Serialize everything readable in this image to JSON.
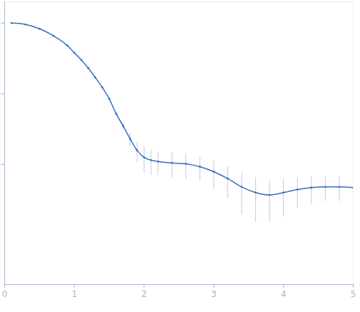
{
  "chart_data": {
    "type": "line",
    "marker": "circle",
    "color": "#3a6cc0",
    "log": "y",
    "grid": false,
    "tick_labels": "x",
    "x": [
      0.1,
      0.3,
      0.5,
      0.7,
      0.9,
      1.0,
      1.1,
      1.2,
      1.3,
      1.4,
      1.5,
      1.6,
      1.7,
      1.8,
      1.9,
      2.0,
      2.1,
      2.2,
      2.4,
      2.6,
      2.8,
      3.0,
      3.2,
      3.4,
      3.6,
      3.8,
      4.0,
      4.2,
      4.4,
      4.6,
      4.8,
      5.0
    ],
    "values": [
      1.0,
      0.955,
      0.83,
      0.66,
      0.48,
      0.38,
      0.3,
      0.23,
      0.17,
      0.123,
      0.085,
      0.052,
      0.035,
      0.023,
      0.0158,
      0.0126,
      0.0115,
      0.011,
      0.0105,
      0.0102,
      0.0093,
      0.0079,
      0.0063,
      0.0048,
      0.004,
      0.0037,
      0.004,
      0.0044,
      0.0047,
      0.0048,
      0.0048,
      0.0047
    ],
    "error": [
      0.002,
      0.002,
      0.002,
      0.002,
      0.002,
      0.002,
      0.002,
      0.002,
      0.002,
      0.002,
      0.002,
      0.002,
      0.003,
      0.005,
      0.005,
      0.005,
      0.0045,
      0.004,
      0.004,
      0.004,
      0.0035,
      0.0035,
      0.003,
      0.0028,
      0.0025,
      0.0022,
      0.0022,
      0.002,
      0.002,
      0.0018,
      0.0018,
      0.0018
    ],
    "xlim": [
      0,
      5
    ],
    "xticks": [
      0,
      1,
      2,
      3,
      4,
      5
    ],
    "ylim": [
      0.0002,
      2
    ],
    "yticks": [
      0.01,
      0.1,
      1
    ]
  }
}
